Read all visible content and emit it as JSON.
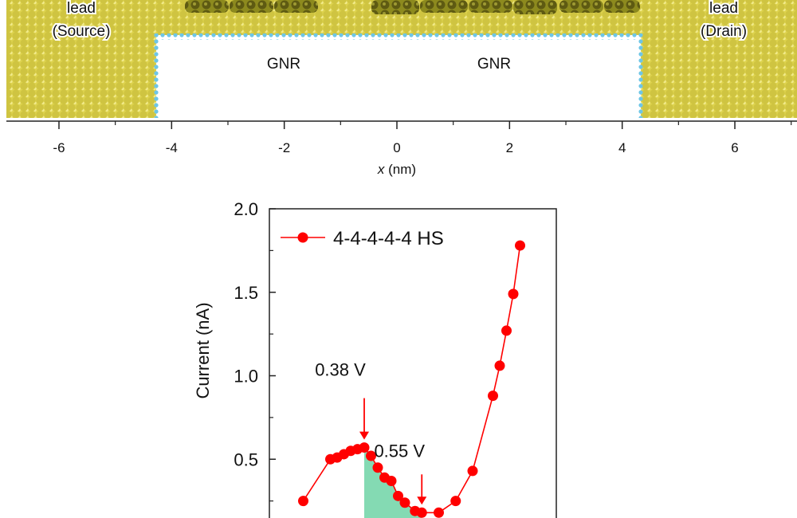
{
  "top_panel": {
    "lead_left_line1": "lead",
    "lead_left_line2": "(Source)",
    "lead_right_line1": "lead",
    "lead_right_line2": "(Drain)",
    "gnr_label_1": "GNR",
    "gnr_label_2": "GNR",
    "x_axis_label_var": "x",
    "x_axis_label_unit": " (nm)",
    "x_ticks": [
      -6,
      -4,
      -2,
      0,
      2,
      4,
      6
    ],
    "colors": {
      "lead": "#c8bd3a",
      "edge_atoms": "#6ec6e6"
    }
  },
  "chart_data": {
    "type": "line",
    "xlabel": "",
    "ylabel": "Current (nA)",
    "ylim": [
      0,
      2.0
    ],
    "y_ticks": [
      "2.0",
      "1.5",
      "1.0",
      "0.5"
    ],
    "legend_placement": "top-left",
    "series": [
      {
        "name": "4-4-4-4-4 HS",
        "color": "#ff0000",
        "x": [
          0.2,
          0.28,
          0.3,
          0.32,
          0.34,
          0.36,
          0.38,
          0.4,
          0.42,
          0.44,
          0.46,
          0.48,
          0.5,
          0.53,
          0.55,
          0.6,
          0.65,
          0.7,
          0.76,
          0.78,
          0.8,
          0.82,
          0.84
        ],
        "y": [
          0.25,
          0.5,
          0.51,
          0.53,
          0.55,
          0.56,
          0.57,
          0.52,
          0.45,
          0.39,
          0.37,
          0.28,
          0.24,
          0.19,
          0.18,
          0.18,
          0.25,
          0.43,
          0.88,
          1.06,
          1.27,
          1.49,
          1.78
        ]
      }
    ],
    "annotations": [
      {
        "text": "0.38 V",
        "x": 0.38,
        "y": 0.57
      },
      {
        "text": "0.55 V",
        "x": 0.55,
        "y": 0.18
      }
    ],
    "shaded_region": {
      "from_x": 0.38,
      "to_x": 0.55,
      "color": "#6fd3a6"
    }
  }
}
